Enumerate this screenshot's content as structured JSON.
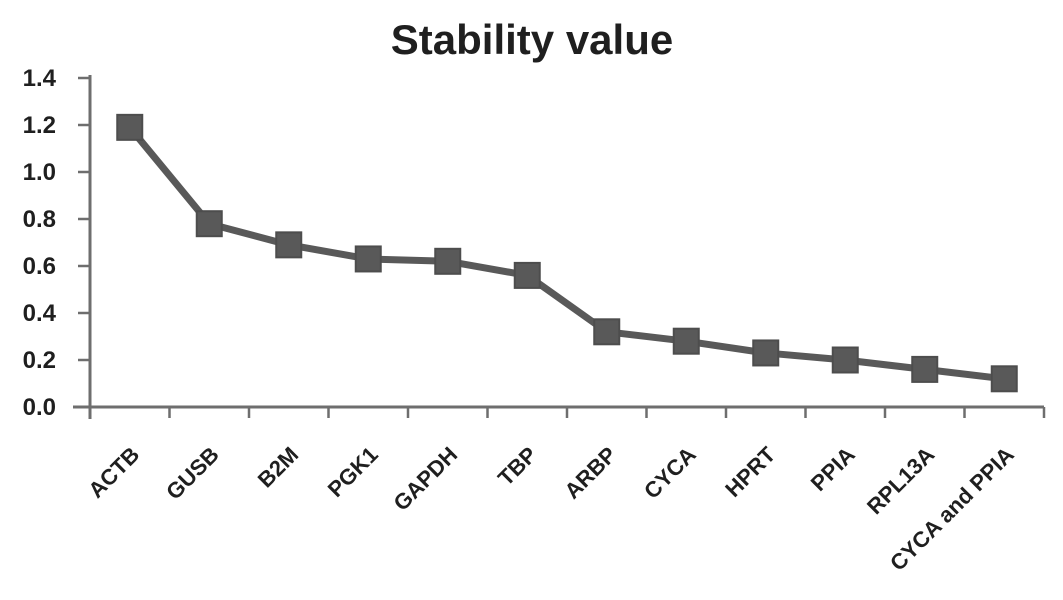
{
  "chart_data": {
    "type": "line",
    "title": "Stability value",
    "categories": [
      "ACTB",
      "GUSB",
      "B2M",
      "PGK1",
      "GAPDH",
      "TBP",
      "ARBP",
      "CYCA",
      "HPRT",
      "PPIA",
      "RPL13A",
      "CYCA and PPIA"
    ],
    "values": [
      1.19,
      0.78,
      0.69,
      0.63,
      0.62,
      0.56,
      0.32,
      0.28,
      0.23,
      0.2,
      0.16,
      0.12
    ],
    "xlabel": "",
    "ylabel": "",
    "ylim": [
      0.0,
      1.4
    ],
    "ytick_labels": [
      "1.4",
      "1.2",
      "1.0",
      "0.8",
      "0.6",
      "0.4",
      "0.2",
      "0.0"
    ],
    "grid": "off",
    "legend": "none",
    "marker": "square",
    "colors": {
      "series": "#595959",
      "marker_edge": "#4d4d4d",
      "axis": "#6e6e6e",
      "text": "#1f1f1f",
      "background": "#ffffff"
    }
  }
}
